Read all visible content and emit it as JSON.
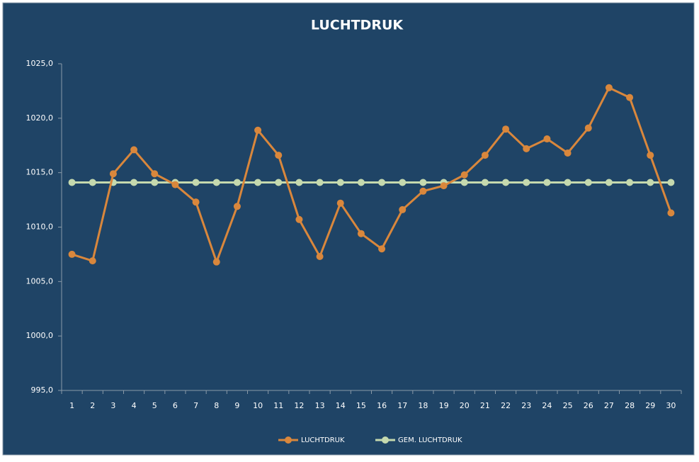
{
  "chart_data": {
    "type": "line",
    "title": "LUCHTDRUK",
    "categories": [
      "1",
      "2",
      "3",
      "4",
      "5",
      "6",
      "7",
      "8",
      "9",
      "10",
      "11",
      "12",
      "13",
      "14",
      "15",
      "16",
      "17",
      "18",
      "19",
      "20",
      "21",
      "22",
      "23",
      "24",
      "25",
      "26",
      "27",
      "28",
      "29",
      "30"
    ],
    "series": [
      {
        "name": "LUCHTDRUK",
        "color": "#d9873c",
        "values": [
          1007.5,
          1006.9,
          1014.9,
          1017.1,
          1014.9,
          1013.9,
          1012.3,
          1006.8,
          1011.9,
          1018.9,
          1016.6,
          1010.7,
          1007.3,
          1012.2,
          1009.4,
          1008.0,
          1011.6,
          1013.3,
          1013.8,
          1014.8,
          1016.6,
          1019.0,
          1017.2,
          1018.1,
          1016.8,
          1019.1,
          1022.8,
          1021.9,
          1016.6,
          1011.3
        ]
      },
      {
        "name": "GEM. LUCHTDRUK",
        "color": "#c5d9ae",
        "values": [
          1014.1,
          1014.1,
          1014.1,
          1014.1,
          1014.1,
          1014.1,
          1014.1,
          1014.1,
          1014.1,
          1014.1,
          1014.1,
          1014.1,
          1014.1,
          1014.1,
          1014.1,
          1014.1,
          1014.1,
          1014.1,
          1014.1,
          1014.1,
          1014.1,
          1014.1,
          1014.1,
          1014.1,
          1014.1,
          1014.1,
          1014.1,
          1014.1,
          1014.1,
          1014.1
        ]
      }
    ],
    "ylim": [
      995,
      1025
    ],
    "yticks": [
      {
        "value": 995,
        "label": "995,0"
      },
      {
        "value": 1000,
        "label": "1000,0"
      },
      {
        "value": 1005,
        "label": "1005,0"
      },
      {
        "value": 1010,
        "label": "1010,0"
      },
      {
        "value": 1015,
        "label": "1015,0"
      },
      {
        "value": 1020,
        "label": "1020,0"
      },
      {
        "value": 1025,
        "label": "1025,0"
      }
    ],
    "grid": false,
    "legend": "bottom"
  }
}
